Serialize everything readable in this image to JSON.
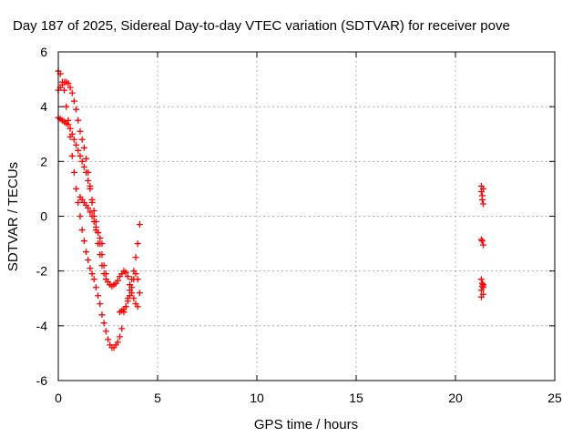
{
  "chart_data": {
    "type": "scatter",
    "title": "Day 187 of 2025, Sidereal Day-to-day VTEC variation (SDTVAR) for receiver pove",
    "xlabel": "GPS time / hours",
    "ylabel": "SDTVAR / TECUs",
    "xlim": [
      0,
      25
    ],
    "ylim": [
      -6,
      6
    ],
    "x_ticks": [
      "0",
      "5",
      "10",
      "15",
      "20",
      "25"
    ],
    "y_ticks": [
      "-6",
      "-4",
      "-2",
      "0",
      "2",
      "4",
      "6"
    ],
    "grid": true,
    "marker": "+",
    "marker_color": "#ff0000",
    "series": [
      {
        "x": [
          0.0,
          0.1,
          0.2,
          0.3,
          0.4,
          0.5,
          0.6,
          0.7,
          0.8,
          0.9,
          1.0,
          1.1,
          1.2,
          1.3,
          1.4,
          1.5,
          1.6,
          1.7,
          1.8,
          1.9,
          2.0,
          2.1,
          2.2,
          2.3,
          2.4,
          2.5,
          2.6,
          2.7,
          2.8,
          2.9,
          3.0,
          3.1,
          3.2,
          3.3,
          3.4,
          3.5,
          3.6,
          3.7,
          3.8,
          3.9,
          4.0,
          4.1
        ],
        "y": [
          5.3,
          5.2,
          4.9,
          4.6,
          4.0,
          3.5,
          2.9,
          2.2,
          1.6,
          1.0,
          0.5,
          0.0,
          -0.5,
          -0.9,
          -1.3,
          -1.6,
          -1.9,
          -2.1,
          -2.3,
          -2.6,
          -2.9,
          -3.2,
          -3.6,
          -3.9,
          -4.2,
          -4.5,
          -4.7,
          -4.8,
          -4.8,
          -4.7,
          -4.6,
          -4.4,
          -4.1,
          -3.5,
          -3.3,
          -3.0,
          -2.7,
          -2.3,
          -2.0,
          -1.5,
          -1.0,
          -0.3
        ]
      },
      {
        "x": [
          0.0,
          0.1,
          0.2,
          0.3,
          0.4,
          0.5,
          0.6,
          0.7,
          0.8,
          0.9,
          1.0,
          1.1,
          1.2,
          1.3,
          1.4,
          1.5,
          1.6,
          1.7,
          1.8,
          1.9,
          2.0,
          2.1,
          2.2,
          2.3,
          2.4,
          2.5,
          2.6,
          2.7,
          2.8,
          2.9,
          3.0,
          3.1,
          3.2,
          3.3,
          3.4,
          3.5,
          3.6,
          3.7,
          3.8,
          3.9,
          4.0
        ],
        "y": [
          4.6,
          4.7,
          4.8,
          4.9,
          4.9,
          4.85,
          4.7,
          4.5,
          4.2,
          3.9,
          3.5,
          3.1,
          2.8,
          2.5,
          2.1,
          1.6,
          1.1,
          0.5,
          0.0,
          -0.5,
          -1.0,
          -1.4,
          -1.8,
          -2.1,
          -2.3,
          -2.4,
          -2.5,
          -2.55,
          -2.5,
          -2.45,
          -2.35,
          -2.2,
          -2.1,
          -2.0,
          -2.05,
          -2.2,
          -2.5,
          -2.8,
          -3.0,
          -3.2,
          -3.3
        ]
      },
      {
        "x": [
          0.0,
          0.1,
          0.2,
          0.3,
          0.4,
          0.5,
          0.6,
          0.7,
          0.8,
          0.9,
          1.0,
          1.1,
          1.2,
          1.3,
          1.4,
          1.5,
          1.6,
          1.7,
          1.8,
          1.9,
          2.0,
          2.1,
          2.2,
          2.3,
          2.4
        ],
        "y": [
          3.6,
          3.55,
          3.5,
          3.45,
          3.4,
          3.35,
          3.2,
          3.0,
          2.8,
          2.6,
          2.4,
          2.2,
          2.0,
          1.8,
          1.6,
          1.3,
          1.0,
          0.6,
          0.2,
          -0.2,
          -0.6,
          -1.0,
          -1.4,
          -1.8,
          -2.1
        ]
      },
      {
        "x": [
          1.1,
          1.2,
          1.3,
          1.4,
          1.5,
          1.6,
          1.7,
          1.8,
          1.9,
          2.0,
          2.1,
          2.2
        ],
        "y": [
          0.7,
          0.6,
          0.5,
          0.4,
          0.3,
          0.15,
          0.0,
          -0.2,
          -0.4,
          -0.6,
          -0.8,
          -1.0
        ]
      },
      {
        "x": [
          3.1,
          3.2,
          3.3,
          3.4,
          3.5,
          3.6,
          3.7,
          3.8,
          3.9,
          4.0,
          4.1
        ],
        "y": [
          -3.5,
          -3.45,
          -3.4,
          -3.3,
          -3.1,
          -2.9,
          -2.6,
          -2.3,
          -2.1,
          -2.3,
          -2.8
        ]
      },
      {
        "x": [
          21.3,
          21.3,
          21.35,
          21.35,
          21.4,
          21.4,
          21.3,
          21.35,
          21.4,
          21.3,
          21.35,
          21.4,
          21.3,
          21.35,
          21.4,
          21.3,
          21.4
        ],
        "y": [
          1.1,
          0.9,
          0.75,
          0.6,
          0.45,
          1.0,
          -0.85,
          -0.9,
          -1.05,
          -2.3,
          -2.45,
          -2.6,
          -2.7,
          -2.55,
          -2.85,
          -2.95,
          -2.5
        ]
      }
    ]
  }
}
